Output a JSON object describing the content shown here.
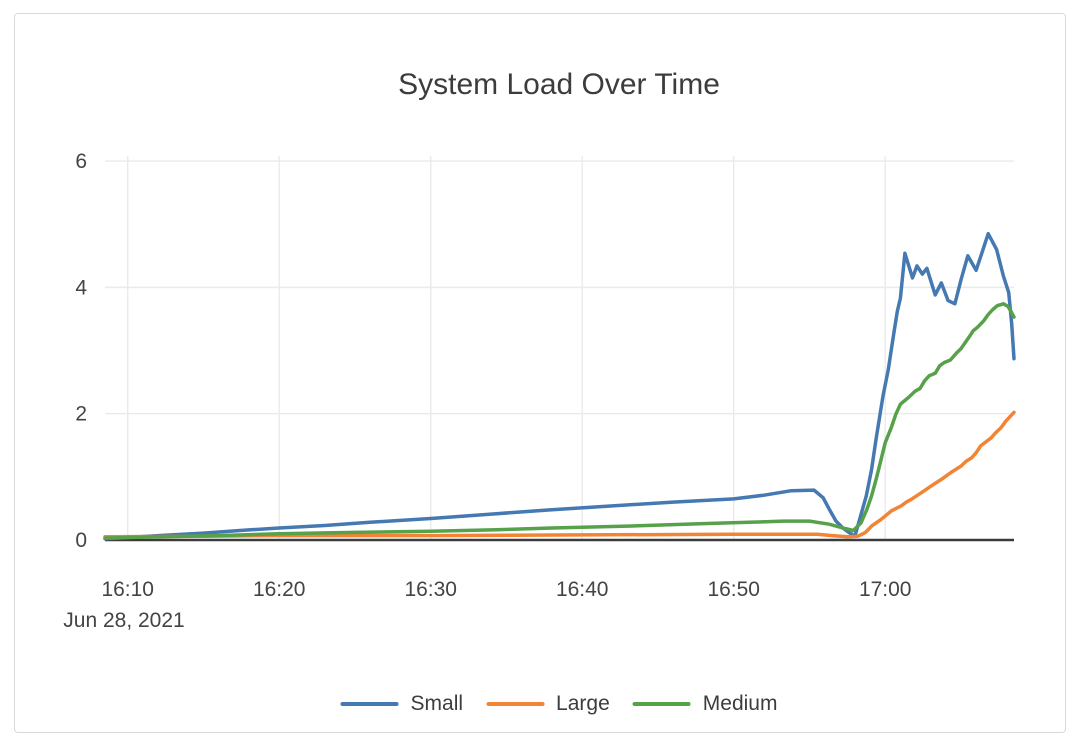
{
  "chart_data": {
    "type": "line",
    "title": "System Load Over Time",
    "date_label": "Jun 28, 2021",
    "legend_position": "bottom-center",
    "grid": true,
    "style": {
      "grid_color": "#eaeaea",
      "zero_line_color": "#3b3b3b",
      "tick_label_color": "#444444",
      "title_color": "#3c3c3c",
      "card_border_color": "#d9d9d9",
      "background": "#ffffff"
    },
    "x_axis": {
      "unit": "time (minutes after 16:00, Jun 28 2021)",
      "range_minutes": [
        8.5,
        68.5
      ],
      "tick_minutes": [
        10,
        20,
        30,
        40,
        50,
        60
      ],
      "tick_labels": [
        "16:10",
        "16:20",
        "16:30",
        "16:40",
        "16:50",
        "17:00"
      ]
    },
    "y_axis": {
      "range": [
        0,
        6.08
      ],
      "ticks": [
        0,
        2,
        4,
        6
      ]
    },
    "series": [
      {
        "name": "Small",
        "color": "#4579b2",
        "points": [
          [
            8.5,
            0.02
          ],
          [
            10,
            0.04
          ],
          [
            12,
            0.07
          ],
          [
            15,
            0.11
          ],
          [
            18,
            0.16
          ],
          [
            20,
            0.19
          ],
          [
            23,
            0.23
          ],
          [
            26,
            0.28
          ],
          [
            30,
            0.34
          ],
          [
            34,
            0.41
          ],
          [
            38,
            0.48
          ],
          [
            42,
            0.54
          ],
          [
            46,
            0.6
          ],
          [
            50,
            0.65
          ],
          [
            52,
            0.71
          ],
          [
            53.8,
            0.78
          ],
          [
            55.3,
            0.79
          ],
          [
            55.9,
            0.67
          ],
          [
            56.3,
            0.49
          ],
          [
            56.75,
            0.3
          ],
          [
            57.2,
            0.19
          ],
          [
            57.6,
            0.12
          ],
          [
            58.0,
            0.06
          ],
          [
            58.75,
            0.7
          ],
          [
            59.1,
            1.12
          ],
          [
            59.4,
            1.6
          ],
          [
            59.85,
            2.28
          ],
          [
            60.2,
            2.7
          ],
          [
            60.55,
            3.25
          ],
          [
            60.8,
            3.62
          ],
          [
            61.0,
            3.83
          ],
          [
            61.3,
            4.54
          ],
          [
            61.8,
            4.15
          ],
          [
            62.1,
            4.34
          ],
          [
            62.45,
            4.21
          ],
          [
            62.75,
            4.3
          ],
          [
            63.3,
            3.88
          ],
          [
            63.7,
            4.07
          ],
          [
            64.15,
            3.79
          ],
          [
            64.6,
            3.74
          ],
          [
            65.0,
            4.12
          ],
          [
            65.45,
            4.5
          ],
          [
            66.0,
            4.27
          ],
          [
            66.4,
            4.56
          ],
          [
            66.8,
            4.85
          ],
          [
            67.35,
            4.6
          ],
          [
            67.8,
            4.18
          ],
          [
            68.15,
            3.92
          ],
          [
            68.35,
            3.42
          ],
          [
            68.5,
            2.87
          ]
        ]
      },
      {
        "name": "Large",
        "color": "#f18435",
        "points": [
          [
            8.5,
            0.05
          ],
          [
            15,
            0.06
          ],
          [
            20,
            0.07
          ],
          [
            30,
            0.07
          ],
          [
            40,
            0.08
          ],
          [
            50,
            0.09
          ],
          [
            55.5,
            0.09
          ],
          [
            56.5,
            0.07
          ],
          [
            57.5,
            0.05
          ],
          [
            58.2,
            0.06
          ],
          [
            58.7,
            0.12
          ],
          [
            59.1,
            0.22
          ],
          [
            59.75,
            0.33
          ],
          [
            60.4,
            0.46
          ],
          [
            61.05,
            0.54
          ],
          [
            61.4,
            0.6
          ],
          [
            61.7,
            0.64
          ],
          [
            62.4,
            0.75
          ],
          [
            63.0,
            0.85
          ],
          [
            63.7,
            0.96
          ],
          [
            64.35,
            1.07
          ],
          [
            65.0,
            1.17
          ],
          [
            65.35,
            1.25
          ],
          [
            65.7,
            1.3
          ],
          [
            66.0,
            1.38
          ],
          [
            66.3,
            1.49
          ],
          [
            67.0,
            1.62
          ],
          [
            67.3,
            1.7
          ],
          [
            67.65,
            1.78
          ],
          [
            67.95,
            1.88
          ],
          [
            68.3,
            1.97
          ],
          [
            68.5,
            2.02
          ]
        ]
      },
      {
        "name": "Medium",
        "color": "#56a14a",
        "points": [
          [
            8.5,
            0.03
          ],
          [
            12,
            0.05
          ],
          [
            16,
            0.07
          ],
          [
            20,
            0.1
          ],
          [
            25,
            0.12
          ],
          [
            30,
            0.14
          ],
          [
            34,
            0.16
          ],
          [
            38,
            0.19
          ],
          [
            43,
            0.22
          ],
          [
            48,
            0.26
          ],
          [
            51,
            0.28
          ],
          [
            53.3,
            0.3
          ],
          [
            55.0,
            0.3
          ],
          [
            56.3,
            0.25
          ],
          [
            57.2,
            0.19
          ],
          [
            57.9,
            0.15
          ],
          [
            58.4,
            0.27
          ],
          [
            58.8,
            0.49
          ],
          [
            59.1,
            0.7
          ],
          [
            59.4,
            0.96
          ],
          [
            59.7,
            1.25
          ],
          [
            60.0,
            1.54
          ],
          [
            60.4,
            1.78
          ],
          [
            60.7,
            1.99
          ],
          [
            61.0,
            2.15
          ],
          [
            61.5,
            2.25
          ],
          [
            62.0,
            2.36
          ],
          [
            62.3,
            2.4
          ],
          [
            62.6,
            2.52
          ],
          [
            62.9,
            2.6
          ],
          [
            63.3,
            2.64
          ],
          [
            63.6,
            2.76
          ],
          [
            63.9,
            2.81
          ],
          [
            64.3,
            2.85
          ],
          [
            64.7,
            2.96
          ],
          [
            65.0,
            3.03
          ],
          [
            65.5,
            3.2
          ],
          [
            65.8,
            3.31
          ],
          [
            66.1,
            3.37
          ],
          [
            66.5,
            3.47
          ],
          [
            66.8,
            3.57
          ],
          [
            67.1,
            3.65
          ],
          [
            67.4,
            3.71
          ],
          [
            67.8,
            3.74
          ],
          [
            68.1,
            3.7
          ],
          [
            68.3,
            3.62
          ],
          [
            68.5,
            3.53
          ]
        ]
      }
    ]
  }
}
